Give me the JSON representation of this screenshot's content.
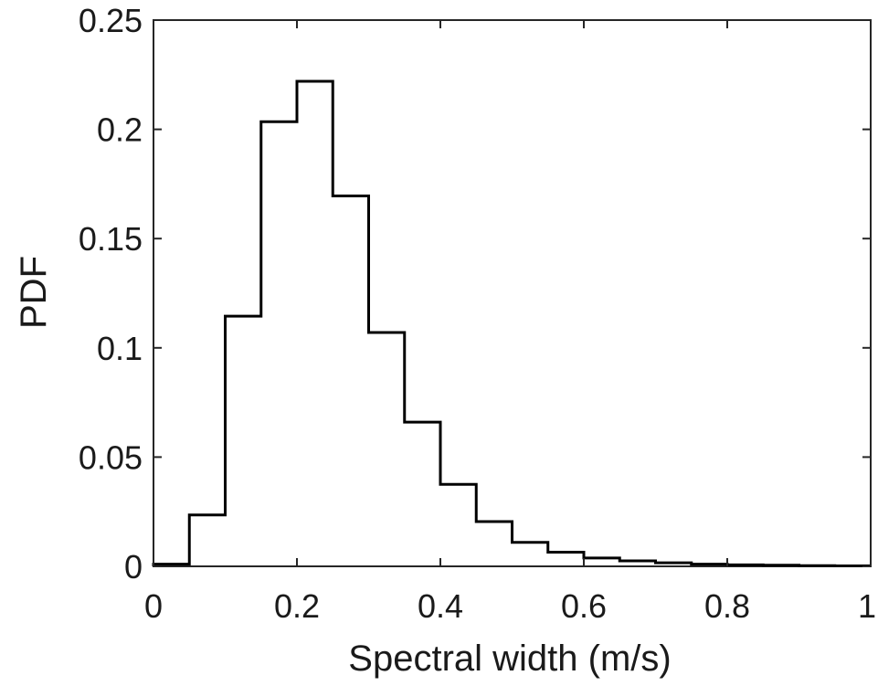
{
  "chart_data": {
    "type": "histogram",
    "display_style": "stairs",
    "xlabel": "Spectral width (m/s)",
    "ylabel": "PDF",
    "xlim": [
      0,
      1
    ],
    "ylim": [
      0,
      0.25
    ],
    "x_ticks": [
      0,
      0.2,
      0.4,
      0.6,
      0.8,
      1
    ],
    "x_tick_labels": [
      "0",
      "0.2",
      "0.4",
      "0.6",
      "0.8",
      "1"
    ],
    "y_ticks": [
      0,
      0.05,
      0.1,
      0.15,
      0.2,
      0.25
    ],
    "y_tick_labels": [
      "0",
      "0.05",
      "0.1",
      "0.15",
      "0.2",
      "0.25"
    ],
    "grid": false,
    "box": true,
    "line_color": "#000000",
    "bin_edges": [
      0,
      0.05,
      0.1,
      0.15,
      0.2,
      0.25,
      0.3,
      0.35,
      0.4,
      0.45,
      0.5,
      0.55,
      0.6,
      0.65,
      0.7,
      0.75,
      0.8,
      0.85,
      0.9,
      0.95,
      1.0
    ],
    "values": [
      0.001,
      0.0235,
      0.1145,
      0.2035,
      0.222,
      0.1695,
      0.107,
      0.066,
      0.0375,
      0.0205,
      0.011,
      0.0065,
      0.0038,
      0.0025,
      0.0016,
      0.001,
      0.0007,
      0.0005,
      0.0003,
      0.0002
    ]
  }
}
